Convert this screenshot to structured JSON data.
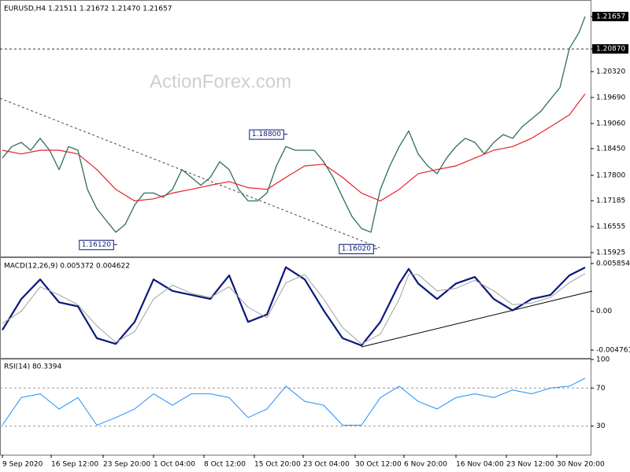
{
  "watermark": "ActionForex.com",
  "chart_data": [
    {
      "type": "line",
      "title": "EURUSD,H4  1.21511 1.21672 1.21470 1.21657",
      "xlim": [
        0,
        372
      ],
      "ylim": [
        1.1585,
        1.2202
      ],
      "hline": 1.2087,
      "yticks": [
        1.21657,
        {
          "value": 1.2087,
          "label": "1.20870"
        },
        {
          "value": 1.2032,
          "label": "1.20320"
        },
        {
          "value": 1.1969,
          "label": "1.19690"
        },
        {
          "value": 1.1906,
          "label": "1.19060"
        },
        {
          "value": 1.1845,
          "label": "1.18450"
        },
        {
          "value": 1.178,
          "label": "1.17800"
        },
        1.17185,
        1.16555,
        1.15925
      ],
      "series": [
        {
          "color": "#2f6f5a",
          "width": 1.3,
          "x": [
            0,
            6,
            12,
            18,
            24,
            30,
            36,
            42,
            48,
            54,
            60,
            66,
            72,
            78,
            84,
            90,
            96,
            102,
            108,
            114,
            120,
            126,
            132,
            138,
            144,
            150,
            156,
            162,
            168,
            174,
            180,
            186,
            192,
            198,
            204,
            210,
            216,
            222,
            228,
            234,
            240,
            246,
            252,
            258,
            264,
            270,
            276,
            282,
            288,
            294,
            300,
            306,
            312,
            318,
            324,
            330,
            336,
            342,
            348,
            354,
            360,
            366,
            370
          ],
          "values": [
            1.1822,
            1.185,
            1.186,
            1.1841,
            1.187,
            1.1841,
            1.1794,
            1.185,
            1.1841,
            1.1746,
            1.1699,
            1.167,
            1.1642,
            1.1661,
            1.1708,
            1.1737,
            1.1737,
            1.1727,
            1.1746,
            1.1794,
            1.1775,
            1.1756,
            1.1775,
            1.1813,
            1.1794,
            1.1746,
            1.1718,
            1.1718,
            1.1737,
            1.1803,
            1.185,
            1.1841,
            1.1841,
            1.1841,
            1.1813,
            1.1775,
            1.1727,
            1.168,
            1.1651,
            1.1642,
            1.1746,
            1.1803,
            1.185,
            1.1888,
            1.1832,
            1.1803,
            1.1784,
            1.1822,
            1.185,
            1.187,
            1.186,
            1.1832,
            1.186,
            1.1879,
            1.187,
            1.1898,
            1.1917,
            1.1936,
            1.1965,
            1.1993,
            1.2088,
            1.2126,
            1.21657
          ]
        },
        {
          "color": "#e8202a",
          "width": 1.2,
          "x": [
            0,
            12,
            24,
            36,
            48,
            60,
            72,
            84,
            96,
            108,
            120,
            132,
            144,
            156,
            168,
            180,
            192,
            204,
            216,
            228,
            240,
            252,
            264,
            276,
            288,
            300,
            312,
            324,
            336,
            348,
            360,
            370
          ],
          "values": [
            1.1841,
            1.1832,
            1.1841,
            1.1841,
            1.1832,
            1.1794,
            1.1746,
            1.1718,
            1.1723,
            1.1737,
            1.1746,
            1.1756,
            1.1765,
            1.175,
            1.1746,
            1.1775,
            1.1803,
            1.1807,
            1.1775,
            1.1737,
            1.1718,
            1.1746,
            1.1784,
            1.1794,
            1.1803,
            1.1822,
            1.1841,
            1.185,
            1.187,
            1.1898,
            1.1927,
            1.1978
          ]
        }
      ],
      "annotations": [
        {
          "x": 181,
          "value": 1.188,
          "label": "1.18800"
        },
        {
          "x": 73,
          "value": 1.1612,
          "label": "1.16120"
        },
        {
          "x": 238,
          "value": 1.1602,
          "label": "1.16020"
        }
      ]
    },
    {
      "type": "line",
      "title": "MACD(12,26,9) 0.005372 0.004622",
      "xlim": [
        0,
        372
      ],
      "ylim": [
        -0.00572,
        0.00643
      ],
      "yticks": [
        0.005854,
        {
          "value": 0,
          "label": "0.00"
        },
        -0.004761
      ],
      "series": [
        {
          "color": "#0a1a7a",
          "width": 2.2,
          "x": [
            0,
            12,
            24,
            36,
            48,
            60,
            72,
            84,
            96,
            108,
            120,
            132,
            144,
            156,
            168,
            180,
            192,
            204,
            216,
            228,
            240,
            252,
            258,
            264,
            276,
            288,
            300,
            312,
            324,
            336,
            348,
            360,
            370
          ],
          "values": [
            -0.0023,
            0.0015,
            0.0039,
            0.0011,
            0.0006,
            -0.0033,
            -0.004,
            -0.0013,
            0.0039,
            0.0025,
            0.002,
            0.0015,
            0.0044,
            -0.0013,
            -0.0004,
            0.0054,
            0.0039,
            0.0001,
            -0.0033,
            -0.0042,
            -0.0013,
            0.0034,
            0.0052,
            0.0034,
            0.0015,
            0.0034,
            0.0042,
            0.0015,
            0.0001,
            0.0015,
            0.002,
            0.0044,
            0.005372
          ]
        },
        {
          "color": "#a0a0a0",
          "width": 1,
          "x": [
            0,
            12,
            24,
            36,
            48,
            60,
            72,
            84,
            96,
            108,
            120,
            132,
            144,
            156,
            168,
            180,
            192,
            204,
            216,
            228,
            240,
            252,
            258,
            264,
            276,
            288,
            300,
            312,
            324,
            336,
            348,
            360,
            370
          ],
          "values": [
            -0.0015,
            0,
            0.003,
            0.002,
            0.0008,
            -0.0018,
            -0.0038,
            -0.0025,
            0.0015,
            0.0032,
            0.0022,
            0.0017,
            0.003,
            0.0005,
            -0.0008,
            0.0035,
            0.0045,
            0.0015,
            -0.002,
            -0.004,
            -0.0028,
            0.0015,
            0.0045,
            0.0045,
            0.0025,
            0.0028,
            0.0038,
            0.0025,
            0.0008,
            0.001,
            0.0017,
            0.0035,
            0.004622
          ]
        }
      ]
    },
    {
      "type": "line",
      "title": "RSI(14) 80.3394",
      "xlim": [
        0,
        372
      ],
      "ylim": [
        0,
        100
      ],
      "grid": true,
      "yticks": [
        100,
        70,
        30
      ],
      "xticks": [
        {
          "value": 0,
          "label": "9 Sep 2020"
        },
        {
          "value": 31,
          "label": "16 Sep 12:00"
        },
        {
          "value": 64,
          "label": "23 Sep 20:00"
        },
        {
          "value": 96,
          "label": "1 Oct 04:00"
        },
        {
          "value": 128,
          "label": "8 Oct 12:00"
        },
        {
          "value": 160,
          "label": "15 Oct 20:00"
        },
        {
          "value": 191,
          "label": "23 Oct 04:00"
        },
        {
          "value": 224,
          "label": "30 Oct 12:00"
        },
        {
          "value": 255,
          "label": "6 Nov 20:00"
        },
        {
          "value": 288,
          "label": "16 Nov 04:00"
        },
        {
          "value": 320,
          "label": "23 Nov 12:00"
        },
        {
          "value": 352,
          "label": "30 Nov 20:00"
        }
      ],
      "series": [
        {
          "color": "#1e90ff",
          "width": 1,
          "x": [
            0,
            12,
            24,
            36,
            48,
            60,
            72,
            84,
            96,
            108,
            120,
            132,
            144,
            156,
            168,
            180,
            192,
            204,
            216,
            228,
            240,
            252,
            264,
            276,
            288,
            300,
            312,
            324,
            336,
            348,
            360,
            370
          ],
          "values": [
            31,
            60,
            64,
            48,
            60,
            31,
            39,
            48,
            64,
            52,
            64,
            64,
            60,
            39,
            48,
            72,
            56,
            52,
            31,
            31,
            60,
            72,
            56,
            48,
            60,
            64,
            60,
            68,
            64,
            70,
            72,
            80.3394
          ]
        }
      ]
    }
  ]
}
